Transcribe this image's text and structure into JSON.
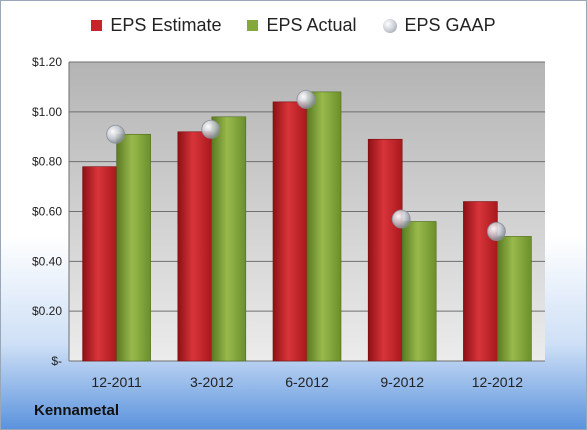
{
  "chart_data": {
    "type": "bar",
    "title": "",
    "xlabel": "",
    "ylabel": "",
    "categories": [
      "12-2011",
      "3-2012",
      "6-2012",
      "9-2012",
      "12-2012"
    ],
    "series": [
      {
        "name": "EPS Estimate",
        "kind": "bar",
        "color": "#c8242a",
        "values": [
          0.78,
          0.92,
          1.04,
          0.89,
          0.64
        ]
      },
      {
        "name": "EPS Actual",
        "kind": "bar",
        "color": "#84a83a",
        "values": [
          0.91,
          0.98,
          1.08,
          0.56,
          0.5
        ]
      },
      {
        "name": "EPS GAAP",
        "kind": "scatter",
        "color": "#b8bcc4",
        "values": [
          0.91,
          0.93,
          1.05,
          0.57,
          0.52
        ]
      }
    ],
    "ylim": [
      0,
      1.2
    ],
    "yticks": [
      0,
      0.2,
      0.4,
      0.6,
      0.8,
      1.0,
      1.2
    ],
    "ytick_labels": [
      "$-",
      "$0.20",
      "$0.40",
      "$0.60",
      "$0.80",
      "$1.00",
      "$1.20"
    ],
    "grid": true,
    "legend_position": "top"
  },
  "footer": {
    "company": "Kennametal"
  }
}
